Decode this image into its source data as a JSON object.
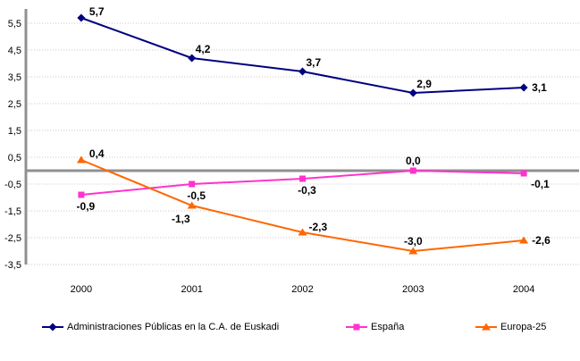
{
  "chart_data": {
    "type": "line",
    "title": "",
    "x_categories": [
      "2000",
      "2001",
      "2002",
      "2003",
      "2004"
    ],
    "y_axis": {
      "min": -3.5,
      "max": 6.0,
      "tick_values": [
        5.5,
        4.5,
        3.5,
        2.5,
        1.5,
        0.5,
        -0.5,
        -1.5,
        -2.5,
        -3.5
      ],
      "tick_labels": [
        "5,5",
        "4,5",
        "3,5",
        "2,5",
        "1,5",
        "0,5",
        "-0,5",
        "-1,5",
        "-2,5",
        "-3,5"
      ]
    },
    "grid": "horizontal-dotted",
    "zero_line": true,
    "legend_position": "bottom",
    "series": [
      {
        "name": "Administraciones Públicas en la C.A. de Euskadi",
        "color": "#000080",
        "marker": "diamond",
        "values": [
          5.7,
          4.2,
          3.7,
          2.9,
          3.1
        ],
        "labels": [
          "5,7",
          "4,2",
          "3,7",
          "2,9",
          "3,1"
        ],
        "label_pos": [
          "above-right",
          "up-right",
          "up-right",
          "up-right",
          "right"
        ]
      },
      {
        "name": "España",
        "color": "#FF33CC",
        "marker": "square",
        "values": [
          -0.9,
          -0.5,
          -0.3,
          0.0,
          -0.1
        ],
        "labels": [
          "-0,9",
          "-0,5",
          "-0,3",
          "0,0",
          "-0,1"
        ],
        "label_pos": [
          "below",
          "below",
          "below",
          "above",
          "below-right"
        ]
      },
      {
        "name": "Europa-25",
        "color": "#FF6600",
        "marker": "triangle",
        "values": [
          0.4,
          -1.3,
          -2.3,
          -3.0,
          -2.6
        ],
        "labels": [
          "0,4",
          "-1,3",
          "-2,3",
          "-3,0",
          "-2,6"
        ],
        "label_pos": [
          "above-right",
          "below-left",
          "right-up",
          "above",
          "right"
        ]
      }
    ]
  },
  "colors": {
    "axis": "#909090",
    "gridline": "#C9C9C9",
    "text": "#000000",
    "background": "#FFFFFF"
  }
}
